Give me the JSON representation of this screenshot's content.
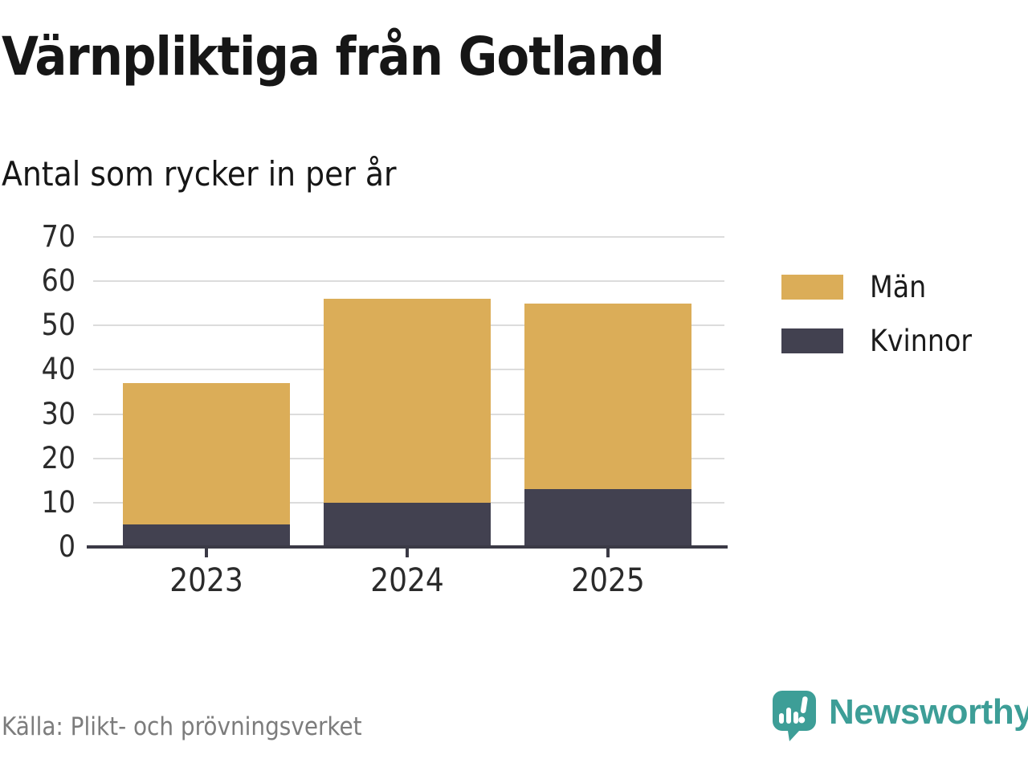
{
  "title": "Värnpliktiga från Gotland",
  "subtitle": "Antal som rycker in per år",
  "source": "Källa: Plikt- och prövningsverket",
  "branding": {
    "name": "Newsworthy",
    "color": "#3d9e97"
  },
  "colors": {
    "men": "#dbad58",
    "women": "#424150",
    "gridline": "#dcdcdc",
    "axis": "#3b3a46",
    "title_text": "#161616",
    "tick_text": "#2b2b2b",
    "source_text": "#7c7c7c"
  },
  "chart_data": {
    "type": "bar",
    "stacked": true,
    "title": "Värnpliktiga från Gotland",
    "subtitle": "Antal som rycker in per år",
    "categories": [
      "2023",
      "2024",
      "2025"
    ],
    "series": [
      {
        "name": "Män",
        "color": "#dbad58",
        "values": [
          32,
          46,
          42
        ]
      },
      {
        "name": "Kvinnor",
        "color": "#424150",
        "values": [
          5,
          10,
          13
        ]
      }
    ],
    "stack_totals": [
      37,
      56,
      55
    ],
    "xlabel": "",
    "ylabel": "",
    "ylim": [
      0,
      70
    ],
    "yticks": [
      0,
      10,
      20,
      30,
      40,
      50,
      60,
      70
    ],
    "grid": true,
    "legend_position": "right"
  }
}
